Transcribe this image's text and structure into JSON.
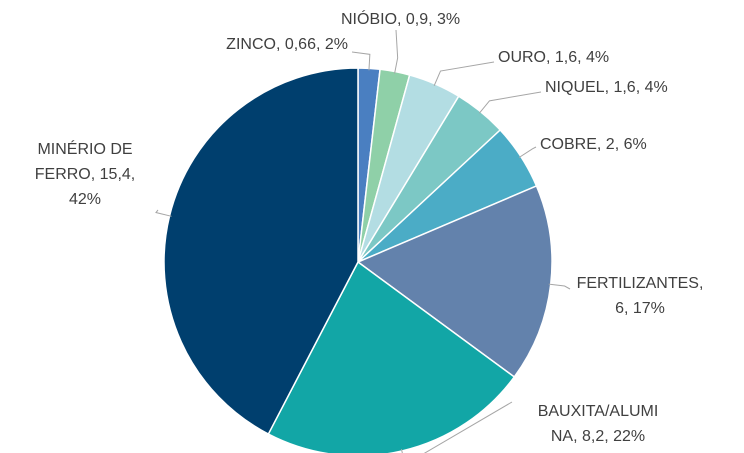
{
  "chart_data": {
    "type": "pie",
    "values": [
      0.66,
      0.9,
      1.6,
      1.6,
      2,
      6,
      8.2,
      15.4
    ],
    "value_labels": [
      [
        "ZINCO, 0,66, 2%"
      ],
      [
        "NIÓBIO, 0,9, 3%"
      ],
      [
        "OURO, 1,6, 4%"
      ],
      [
        "NIQUEL, 1,6, 4%"
      ],
      [
        "COBRE, 2, 6%"
      ],
      [
        "FERTILIZANTES,",
        "6, 17%"
      ],
      [
        "BAUXITA/ALUMI",
        "NA, 8,2, 22%"
      ],
      [
        "MINÉRIO DE",
        "FERRO, 15,4,",
        "42%"
      ]
    ],
    "colors": [
      "#4a7fc1",
      "#8fd0a8",
      "#b3dde3",
      "#7cc8c5",
      "#4bacc6",
      "#6382ac",
      "#12a6a6",
      "#003f6e"
    ]
  }
}
